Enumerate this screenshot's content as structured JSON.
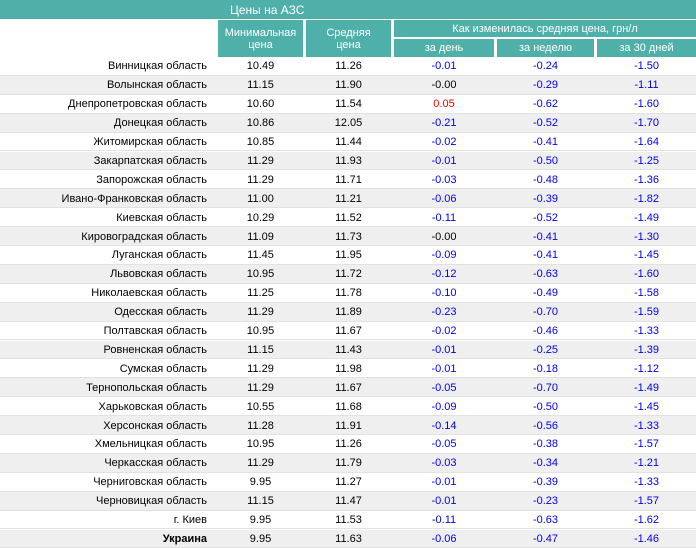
{
  "header": {
    "title": "Цены на АЗС",
    "columns": [
      "Минимальная цена",
      "Средняя цена"
    ],
    "change_group": "Как изменилась средняя цена, грн/л",
    "change_columns": [
      "за день",
      "за неделю",
      "за 30 дней"
    ]
  },
  "table": {
    "rows": [
      [
        "Винницкая область",
        "10.49",
        "11.26",
        "-0.01",
        "-0.24",
        "-1.50"
      ],
      [
        "Волынская область",
        "11.15",
        "11.90",
        "-0.00",
        "-0.29",
        "-1.11"
      ],
      [
        "Днепропетровская область",
        "10.60",
        "11.54",
        "0.05",
        "-0.62",
        "-1.60"
      ],
      [
        "Донецкая область",
        "10.86",
        "12.05",
        "-0.21",
        "-0.52",
        "-1.70"
      ],
      [
        "Житомирская область",
        "10.85",
        "11.44",
        "-0.02",
        "-0.41",
        "-1.64"
      ],
      [
        "Закарпатская область",
        "11.29",
        "11.93",
        "-0.01",
        "-0.50",
        "-1.25"
      ],
      [
        "Запорожская область",
        "11.29",
        "11.71",
        "-0.03",
        "-0.48",
        "-1.36"
      ],
      [
        "Ивано-Франковская область",
        "11.00",
        "11.21",
        "-0.06",
        "-0.39",
        "-1.82"
      ],
      [
        "Киевская область",
        "10.29",
        "11.52",
        "-0.11",
        "-0.52",
        "-1.49"
      ],
      [
        "Кировоградская область",
        "11.09",
        "11.73",
        "-0.00",
        "-0.41",
        "-1.30"
      ],
      [
        "Луганская область",
        "11.45",
        "11.95",
        "-0.09",
        "-0.41",
        "-1.45"
      ],
      [
        "Львовская область",
        "10.95",
        "11.72",
        "-0.12",
        "-0.63",
        "-1.60"
      ],
      [
        "Николаевская область",
        "11.25",
        "11.78",
        "-0.10",
        "-0.49",
        "-1.58"
      ],
      [
        "Одесская область",
        "11.29",
        "11.89",
        "-0.23",
        "-0.70",
        "-1.59"
      ],
      [
        "Полтавская область",
        "10.95",
        "11.67",
        "-0.02",
        "-0.46",
        "-1.33"
      ],
      [
        "Ровненская область",
        "11.15",
        "11.43",
        "-0.01",
        "-0.25",
        "-1.39"
      ],
      [
        "Сумская область",
        "11.29",
        "11.98",
        "-0.01",
        "-0.18",
        "-1.12"
      ],
      [
        "Тернопольская область",
        "11.29",
        "11.67",
        "-0.05",
        "-0.70",
        "-1.49"
      ],
      [
        "Харьковская область",
        "10.55",
        "11.68",
        "-0.09",
        "-0.50",
        "-1.45"
      ],
      [
        "Херсонская область",
        "11.28",
        "11.91",
        "-0.14",
        "-0.56",
        "-1.33"
      ],
      [
        "Хмельницкая область",
        "10.95",
        "11.26",
        "-0.05",
        "-0.38",
        "-1.57"
      ],
      [
        "Черкасская область",
        "11.29",
        "11.79",
        "-0.03",
        "-0.34",
        "-1.21"
      ],
      [
        "Черниговская область",
        "9.95",
        "11.27",
        "-0.01",
        "-0.39",
        "-1.33"
      ],
      [
        "Черновицкая область",
        "11.15",
        "11.47",
        "-0.01",
        "-0.23",
        "-1.57"
      ],
      [
        "г. Киев",
        "9.95",
        "11.53",
        "-0.11",
        "-0.63",
        "-1.62"
      ],
      [
        "Украина",
        "9.95",
        "11.63",
        "-0.06",
        "-0.47",
        "-1.46"
      ]
    ]
  }
}
